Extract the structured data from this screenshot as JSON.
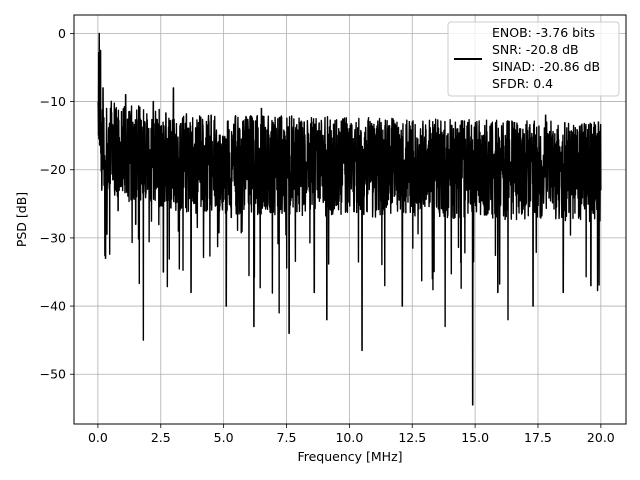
{
  "chart_data": {
    "type": "line",
    "xlabel": "Frequency [MHz]",
    "ylabel": "PSD [dB]",
    "xlim": [
      -0.95,
      21.0
    ],
    "ylim": [
      -57.3,
      2.7
    ],
    "xticks": [
      0.0,
      2.5,
      5.0,
      7.5,
      10.0,
      12.5,
      15.0,
      17.5,
      20.0
    ],
    "xtick_labels": [
      "0.0",
      "2.5",
      "5.0",
      "7.5",
      "10.0",
      "12.5",
      "15.0",
      "17.5",
      "20.0"
    ],
    "yticks": [
      0,
      -10,
      -20,
      -30,
      -40,
      -50
    ],
    "ytick_labels": [
      "0",
      "−10",
      "−20",
      "−30",
      "−40",
      "−50"
    ],
    "grid": true,
    "legend_position": "top-right",
    "line_color": "#000000",
    "series": [
      {
        "x": [
          0.0,
          0.05,
          0.1,
          0.15,
          0.2,
          0.3,
          0.5,
          0.8,
          1.1,
          1.5,
          1.8,
          2.2,
          2.6,
          3.0,
          3.2,
          3.7,
          4.5,
          5.1,
          5.3,
          6.2,
          6.5,
          7.2,
          7.6,
          8.2,
          8.6,
          9.1,
          10.0,
          10.5,
          11.0,
          11.4,
          12.1,
          12.5,
          13.3,
          13.8,
          14.3,
          14.9,
          15.3,
          15.9,
          16.3,
          16.8,
          17.3,
          17.8,
          18.5,
          19.0,
          19.6,
          19.9,
          20.0
        ],
        "y": [
          -10,
          0.0,
          -2.5,
          -23,
          -8,
          -33,
          -11,
          -26,
          -9,
          -28,
          -45,
          -10,
          -35,
          -8,
          -29,
          -38,
          -12,
          -40,
          -27,
          -43,
          -11,
          -41,
          -44,
          -13,
          -38,
          -42,
          -14,
          -46.5,
          -15,
          -37,
          -40,
          -13,
          -36,
          -43,
          -14,
          -54.5,
          -16,
          -38,
          -42,
          -14,
          -40,
          -12,
          -38,
          -15,
          -37,
          -13,
          -23
        ]
      }
    ],
    "legend": {
      "lines": [
        "ENOB: -3.76 bits",
        "SNR: -20.8 dB",
        "SINAD: -20.86 dB",
        "SFDR: 0.4"
      ]
    }
  }
}
